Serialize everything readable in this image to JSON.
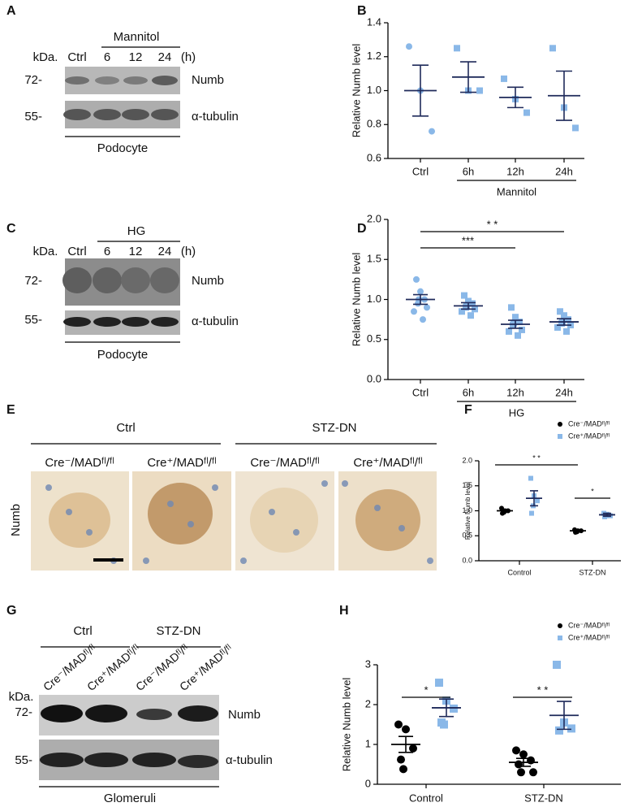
{
  "panel_labels": [
    "A",
    "B",
    "C",
    "D",
    "E",
    "F",
    "G",
    "H"
  ],
  "blot_a": {
    "group": "Mannitol",
    "kda": "kDa.",
    "lanes": [
      "Ctrl",
      "6",
      "12",
      "24",
      "(h)"
    ],
    "markers": [
      "72-",
      "55-"
    ],
    "proteins": [
      "Numb",
      "α-tubulin"
    ],
    "sample": "Podocyte"
  },
  "blot_c": {
    "group": "HG",
    "kda": "kDa.",
    "lanes": [
      "Ctrl",
      "6",
      "12",
      "24",
      "(h)"
    ],
    "markers": [
      "72-",
      "55-"
    ],
    "proteins": [
      "Numb",
      "α-tubulin"
    ],
    "sample": "Podocyte"
  },
  "ihc_e": {
    "groups": [
      "Ctrl",
      "STZ-DN"
    ],
    "columns": [
      "Cre⁻/MADᶠˡ/ᶠˡ",
      "Cre⁺/MADᶠˡ/ᶠˡ",
      "Cre⁻/MADᶠˡ/ᶠˡ",
      "Cre⁺/MADᶠˡ/ᶠˡ"
    ],
    "stain": "Numb"
  },
  "blot_g": {
    "groups": [
      "Ctrl",
      "STZ-DN"
    ],
    "kda": "kDa.",
    "lanes": [
      "Cre⁻/MADᶠˡ/ᶠˡ",
      "Cre⁺/MADᶠˡ/ᶠˡ",
      "Cre⁻/MADᶠˡ/ᶠˡ",
      "Cre⁺/MADᶠˡ/ᶠˡ"
    ],
    "markers": [
      "72-",
      "55-"
    ],
    "proteins": [
      "Numb",
      "α-tubulin"
    ],
    "sample": "Glomeruli"
  },
  "chart_data": [
    {
      "type": "dot",
      "y_label": "Relative Numb level",
      "categories": [
        "Ctrl",
        "6h",
        "12h",
        "24h"
      ],
      "group_label": "Mannitol",
      "ylim": [
        0.6,
        1.4
      ],
      "yticks": [
        0.6,
        0.8,
        {
          "value": 1.0,
          "label": "1.0"
        },
        1.2,
        1.4
      ],
      "significance": [],
      "series": [
        {
          "color": "#8ab8e8",
          "error_color": "#1f2a5a",
          "markers": [
            "circle",
            "square",
            "square",
            "square"
          ],
          "values": [
            [
              1.26,
              1.0,
              0.76
            ],
            [
              1.25,
              1.0,
              1.0
            ],
            [
              1.07,
              0.95,
              0.87
            ],
            [
              1.25,
              0.9,
              0.78
            ]
          ],
          "mean": [
            1.0,
            1.08,
            0.96,
            0.97
          ],
          "sem": [
            0.15,
            0.09,
            0.06,
            0.145
          ]
        }
      ]
    },
    {
      "type": "dot",
      "y_label": "Relative Numb level",
      "categories": [
        "Ctrl",
        "6h",
        "12h",
        "24h"
      ],
      "group_label": "HG",
      "ylim": [
        0,
        2
      ],
      "yticks": [
        {
          "value": 0,
          "label": "0.0"
        },
        0.5,
        {
          "value": 1,
          "label": "1.0"
        },
        1.5,
        {
          "value": 2,
          "label": "2.0"
        }
      ],
      "significance": [
        "* *",
        "***"
      ],
      "series": [
        {
          "color": "#8ab8e8",
          "error_color": "#1f2a5a",
          "markers": [
            "circle",
            "square",
            "square",
            "square"
          ],
          "values": [
            [
              1.25,
              1.1,
              1.0,
              1.0,
              0.95,
              0.9,
              0.85,
              0.75
            ],
            [
              1.05,
              0.98,
              0.95,
              0.92,
              0.9,
              0.88,
              0.85,
              0.8
            ],
            [
              0.9,
              0.78,
              0.72,
              0.7,
              0.68,
              0.62,
              0.6,
              0.55
            ],
            [
              0.85,
              0.8,
              0.75,
              0.72,
              0.7,
              0.68,
              0.65,
              0.6
            ]
          ],
          "mean": [
            1.0,
            0.92,
            0.69,
            0.72
          ],
          "sem": [
            0.06,
            0.04,
            0.05,
            0.04
          ]
        }
      ]
    },
    {
      "type": "dot",
      "y_label": "Relative Numb level",
      "categories": [
        "Control",
        "STZ-DN"
      ],
      "ylim": [
        0,
        2
      ],
      "yticks": [
        {
          "value": 0,
          "label": "0.0"
        },
        0.5,
        {
          "value": 1,
          "label": "1.0"
        },
        1.5,
        {
          "value": 2,
          "label": "2.0"
        }
      ],
      "significance": [
        "* *",
        "*"
      ],
      "series": [
        {
          "name": "Cre⁻/MADᶠˡ/ᶠˡ",
          "color": "#000000",
          "error_color": "#000000",
          "marker": "circle",
          "values": [
            [
              1.05,
              1.0,
              1.0,
              0.97,
              0.95
            ],
            [
              0.62,
              0.6,
              0.6,
              0.58,
              0.57
            ]
          ],
          "mean": [
            1.0,
            0.6
          ],
          "sem": [
            0.03,
            0.01
          ]
        },
        {
          "name": "Cre⁺/MADᶠˡ/ᶠˡ",
          "color": "#8ab8e8",
          "error_color": "#1f2a5a",
          "marker": "square",
          "values": [
            [
              1.65,
              1.3,
              1.2,
              1.1,
              0.95
            ],
            [
              0.95,
              0.93,
              0.9,
              0.9,
              0.88
            ]
          ],
          "mean": [
            1.25,
            0.92
          ],
          "sem": [
            0.15,
            0.03
          ]
        }
      ]
    },
    {
      "type": "dot",
      "y_label": "Relative Numb level",
      "categories": [
        "Control",
        "STZ-DN"
      ],
      "ylim": [
        0,
        3
      ],
      "yticks": [
        0,
        1,
        2,
        3
      ],
      "significance": [
        "*",
        "* *"
      ],
      "series": [
        {
          "name": "Cre⁻/MADᶠˡ/ᶠˡ",
          "color": "#000000",
          "error_color": "#000000",
          "marker": "circle",
          "values": [
            [
              1.5,
              1.38,
              0.9,
              0.62,
              0.38
            ],
            [
              0.85,
              0.75,
              0.6,
              0.5,
              0.3,
              0.3
            ]
          ],
          "mean": [
            1.0,
            0.55
          ],
          "sem": [
            0.2,
            0.1
          ]
        },
        {
          "name": "Cre⁺/MADᶠˡ/ᶠˡ",
          "color": "#8ab8e8",
          "error_color": "#1f2a5a",
          "marker": "square",
          "values": [
            [
              2.55,
              2.1,
              1.9,
              1.55,
              1.5
            ],
            [
              3.0,
              1.55,
              1.4,
              1.35
            ]
          ],
          "mean": [
            1.92,
            1.73
          ],
          "sem": [
            0.22,
            0.35
          ]
        }
      ]
    }
  ]
}
